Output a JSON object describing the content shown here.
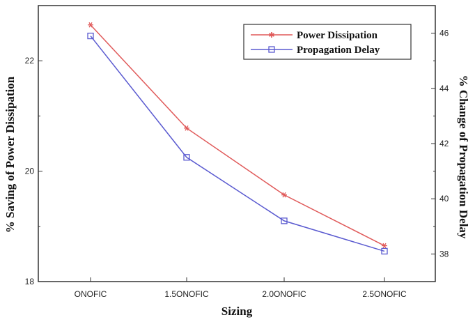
{
  "chart_data": {
    "type": "line",
    "categories": [
      "ONOFIC",
      "1.5ONOFIC",
      "2.0ONOFIC",
      "2.5ONOFIC"
    ],
    "xlabel": "Sizing",
    "ylabel_left": "% Saving of Power Dissipation",
    "ylabel_right": "% Change of Propagation Delay",
    "ylim_left": [
      18,
      23
    ],
    "ylim_right": [
      37,
      47
    ],
    "yticks_left": [
      18,
      20,
      22
    ],
    "yticks_right": [
      38,
      40,
      42,
      44,
      46
    ],
    "legend_position": "top-right",
    "grid": false,
    "series": [
      {
        "name": "Power Dissipation",
        "axis": "left",
        "color": "#e05a5a",
        "marker": "star",
        "values": [
          22.65,
          20.78,
          19.57,
          18.65
        ]
      },
      {
        "name": "Propagation Delay",
        "axis": "right",
        "color": "#5a5ad0",
        "marker": "square",
        "values": [
          45.9,
          41.5,
          39.2,
          38.1
        ]
      }
    ]
  }
}
